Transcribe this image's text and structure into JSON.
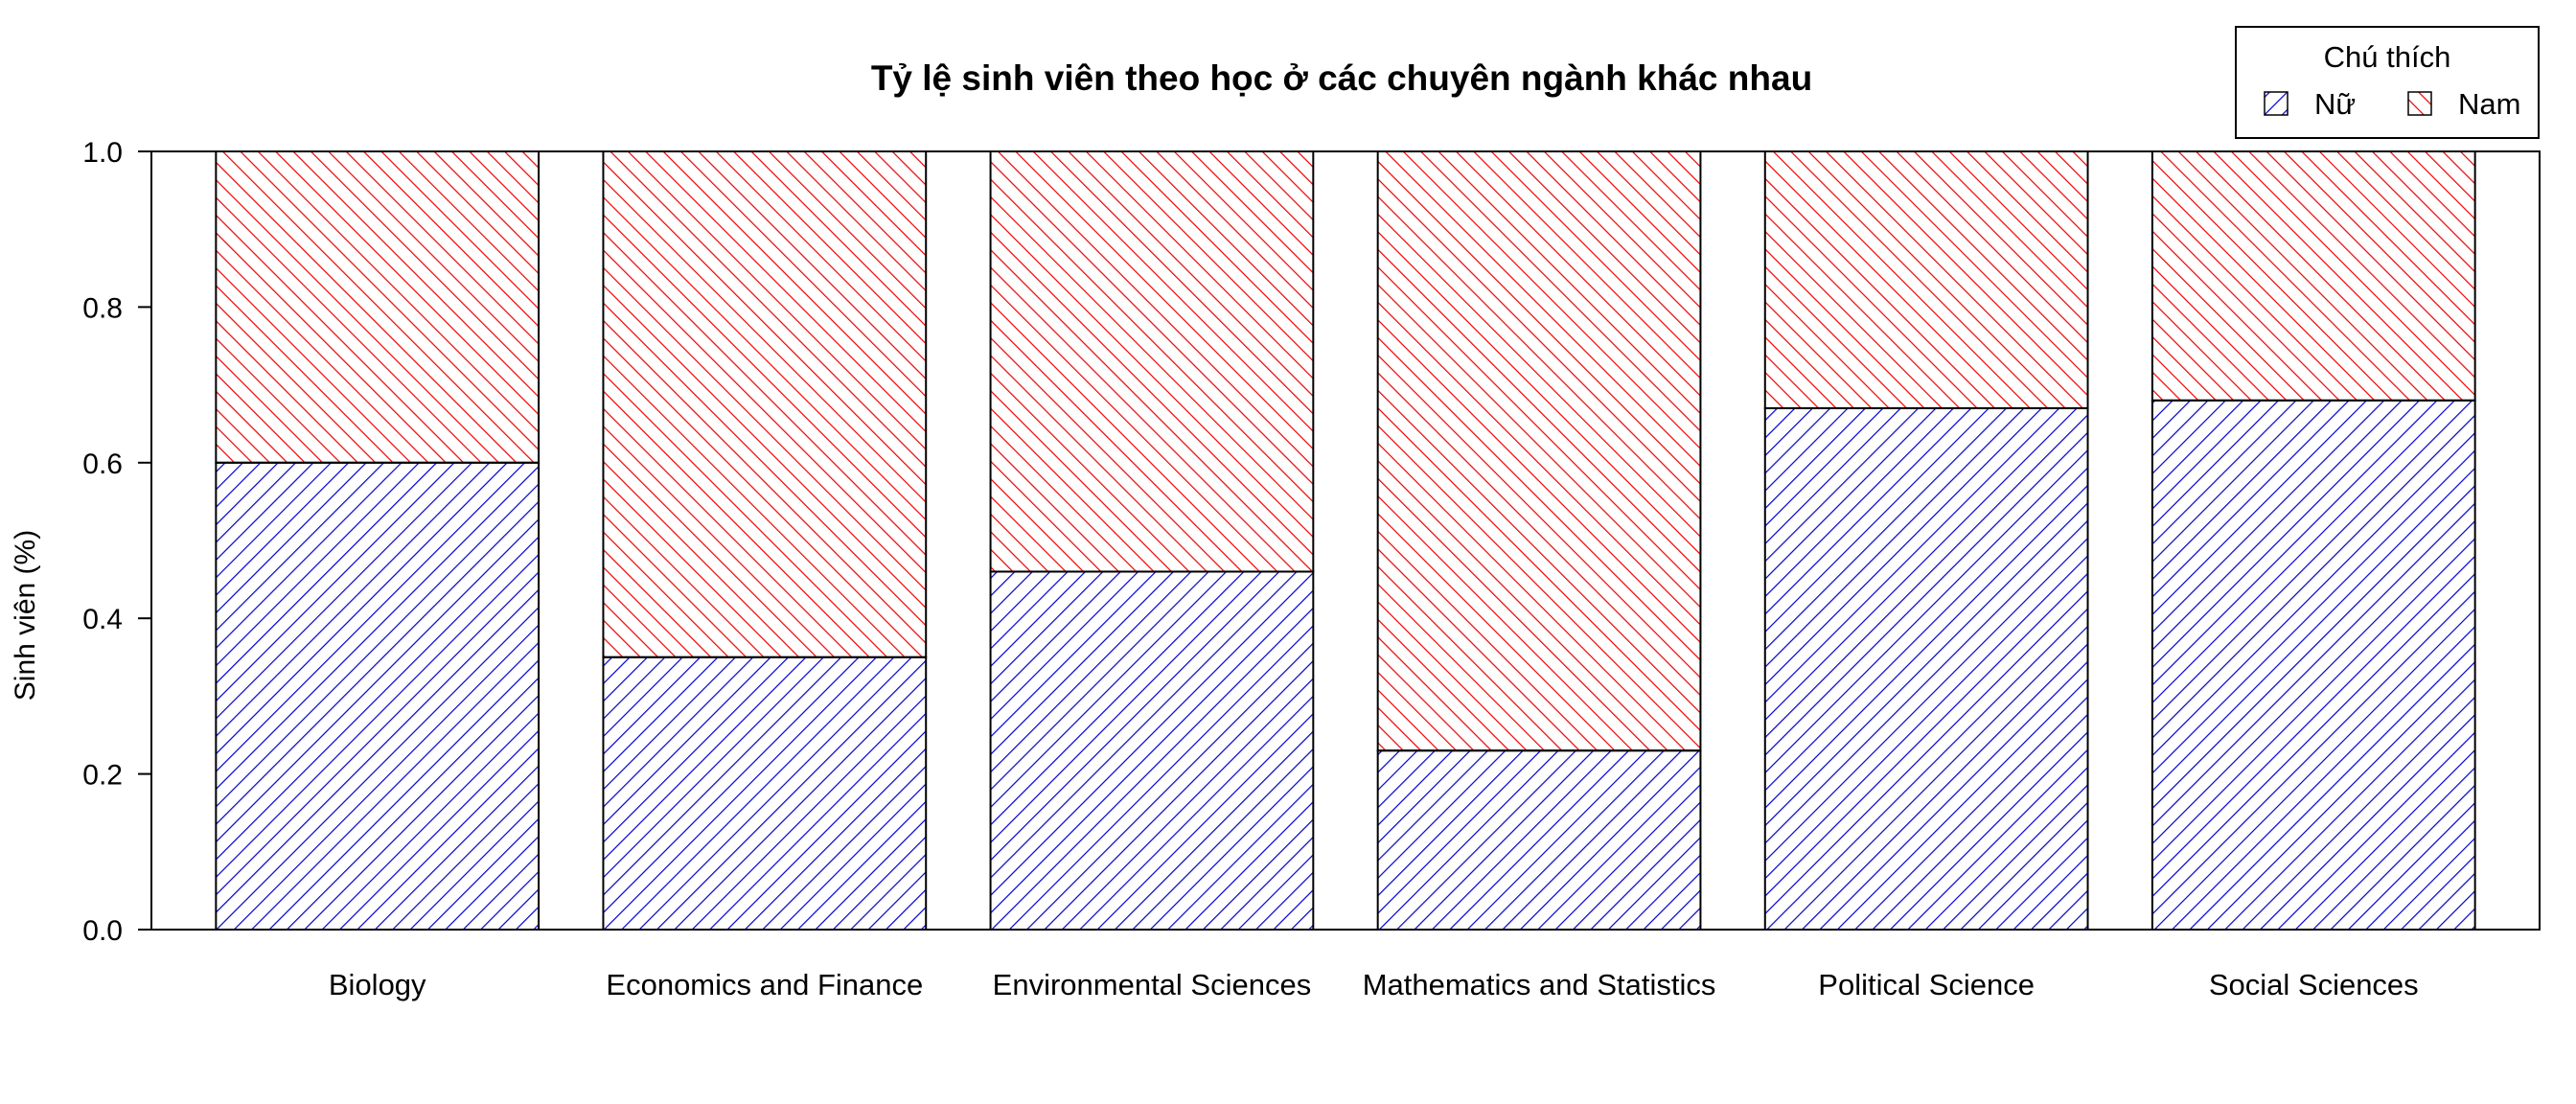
{
  "colors": {
    "nu": "#0000cc",
    "nam": "#ee0000",
    "axis": "#000000",
    "background": "#ffffff"
  },
  "legend": {
    "title": "Chú thích",
    "items": [
      {
        "label": "Nữ",
        "color": "#0000cc",
        "hatch": "diagonal-forward"
      },
      {
        "label": "Nam",
        "color": "#ee0000",
        "hatch": "diagonal-backward"
      }
    ]
  },
  "chart_data": {
    "type": "bar",
    "stacked": true,
    "title": "Tỷ lệ sinh viên theo học ở các chuyên ngành khác nhau",
    "xlabel": "",
    "ylabel": "Sinh viên (%)",
    "ylim": [
      0,
      1
    ],
    "yticks": [
      "0.0",
      "0.2",
      "0.4",
      "0.6",
      "0.8",
      "1.0"
    ],
    "grid": false,
    "legend_position": "top-right",
    "categories": [
      "Biology",
      "Economics and Finance",
      "Environmental Sciences",
      "Mathematics and Statistics",
      "Political Science",
      "Social Sciences"
    ],
    "series": [
      {
        "name": "Nữ",
        "values": [
          0.6,
          0.35,
          0.46,
          0.23,
          0.67,
          0.68
        ]
      },
      {
        "name": "Nam",
        "values": [
          0.4,
          0.65,
          0.54,
          0.77,
          0.33,
          0.32
        ]
      }
    ]
  }
}
